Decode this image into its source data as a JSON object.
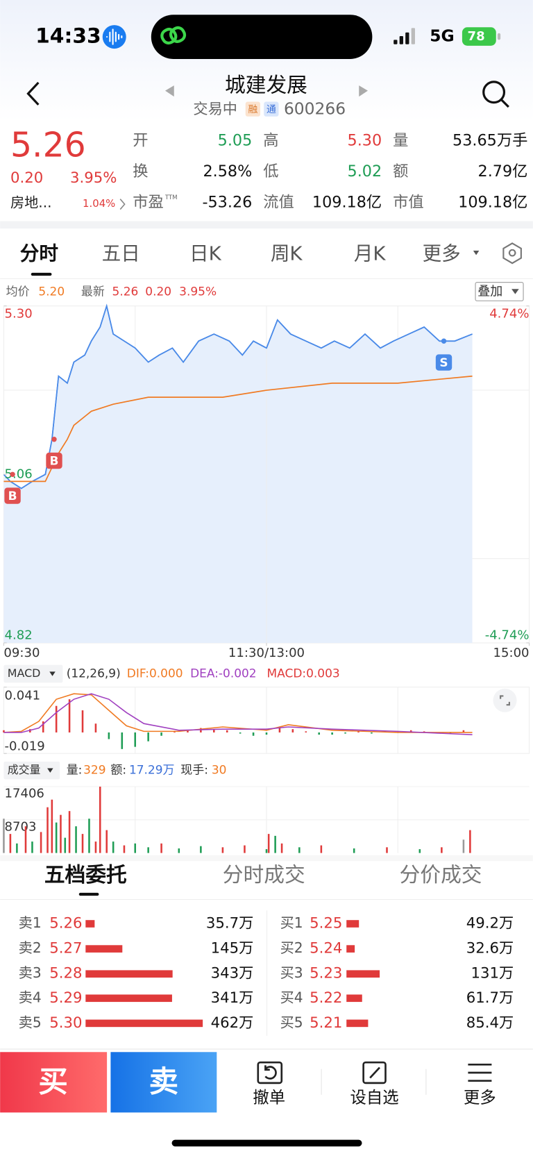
{
  "status_bar": {
    "time": "14:33",
    "network": "5G",
    "battery": "78"
  },
  "header": {
    "title": "城建发展",
    "status": "交易中",
    "badges": [
      "融",
      "通"
    ],
    "code": "600266"
  },
  "quote": {
    "price": "5.26",
    "change": "0.20",
    "change_pct": "3.95%",
    "sector": "房地...",
    "sector_pct": "1.04%",
    "stats": [
      {
        "label": "开",
        "value": "5.05",
        "color": "#1f9d55"
      },
      {
        "label": "高",
        "value": "5.30",
        "color": "#e03a3a"
      },
      {
        "label": "量",
        "value": "53.65万手",
        "color": "#111111"
      },
      {
        "label": "换",
        "value": "2.58%",
        "color": "#111111"
      },
      {
        "label": "低",
        "value": "5.02",
        "color": "#1f9d55"
      },
      {
        "label": "额",
        "value": "2.79亿",
        "color": "#111111"
      },
      {
        "label": "市盈",
        "suffix": "TTM",
        "value": "-53.26",
        "color": "#111111"
      },
      {
        "label": "流值",
        "value": "109.18亿",
        "color": "#111111"
      },
      {
        "label": "市值",
        "value": "109.18亿",
        "color": "#111111"
      }
    ]
  },
  "tabs": [
    "分时",
    "五日",
    "日K",
    "周K",
    "月K",
    "更多"
  ],
  "legend": {
    "latest_label": "最新",
    "latest": "5.26",
    "change": "0.20",
    "change_pct": "3.95%",
    "overlay": "叠加"
  },
  "chart_data": [
    {
      "type": "line",
      "fill_area": true,
      "xlim": [
        0,
        240
      ],
      "xticks": [
        {
          "value": 0,
          "label": "09:30"
        },
        {
          "value": 120,
          "label": "11:30/13:00"
        },
        {
          "value": 240,
          "label": "15:00"
        }
      ],
      "ylim": [
        4.82,
        5.3
      ],
      "yticks": [
        {
          "value": 5.3,
          "label": "5.30"
        },
        5.06,
        4.82
      ],
      "y2lim": [
        -4.74,
        4.74
      ],
      "y2ticks": [
        {
          "value": 4.74,
          "label": "4.74%"
        },
        {
          "value": -4.74,
          "label": "-4.74%"
        }
      ],
      "series": [
        {
          "name": "均价",
          "legend_value": "5.20",
          "color": "#f07a22",
          "x": [
            0,
            13,
            19,
            22,
            25,
            29,
            32,
            40,
            50,
            66,
            100,
            120,
            150,
            180,
            214
          ],
          "values": [
            5.05,
            5.05,
            5.05,
            5.07,
            5.09,
            5.11,
            5.13,
            5.15,
            5.16,
            5.17,
            5.17,
            5.18,
            5.19,
            5.19,
            5.2
          ]
        },
        {
          "color": "#4a8ae8",
          "area_color": "#e6effc",
          "x": [
            0,
            3,
            8,
            13,
            19,
            22,
            25,
            29,
            32,
            37,
            40,
            44,
            47,
            50,
            55,
            60,
            66,
            71,
            77,
            82,
            89,
            96,
            103,
            109,
            114,
            120,
            125,
            131,
            138,
            145,
            151,
            158,
            165,
            172,
            178,
            185,
            192,
            199,
            206,
            214
          ],
          "values": [
            5.06,
            5.05,
            5.04,
            5.05,
            5.06,
            5.11,
            5.2,
            5.19,
            5.22,
            5.23,
            5.25,
            5.27,
            5.3,
            5.26,
            5.25,
            5.24,
            5.22,
            5.23,
            5.24,
            5.22,
            5.25,
            5.26,
            5.25,
            5.23,
            5.25,
            5.24,
            5.28,
            5.26,
            5.25,
            5.24,
            5.25,
            5.24,
            5.26,
            5.24,
            5.25,
            5.26,
            5.27,
            5.25,
            5.25,
            5.26
          ]
        }
      ],
      "annotations": [
        {
          "x": 4,
          "y": 5.06,
          "label": "B",
          "color": "#e05050"
        },
        {
          "x": 23,
          "y": 5.11,
          "label": "B",
          "color": "#e05050"
        },
        {
          "x": 201,
          "y": 5.25,
          "label": "S",
          "color": "#4a8ae8"
        }
      ]
    },
    {
      "type": "macd",
      "menu": "MACD",
      "params": "(12,26,9)",
      "readouts": [
        {
          "text": "DIF:0.000",
          "color": "#f07a22"
        },
        {
          "text": "DEA:-0.002",
          "color": "#a040c0"
        },
        {
          "text": "MACD:0.003",
          "color": "#e03a3a"
        }
      ],
      "xlim": [
        0,
        240
      ],
      "ylim": [
        -0.019,
        0.041
      ],
      "yticks": [
        0.041,
        -0.019
      ],
      "lines_x": [
        0,
        8,
        16,
        24,
        32,
        40,
        48,
        56,
        64,
        80,
        100,
        120,
        130,
        150,
        180,
        214
      ],
      "dif": {
        "color": "#f07a22",
        "values": [
          0,
          0.001,
          0.01,
          0.03,
          0.035,
          0.034,
          0.02,
          0.006,
          0.001,
          0.001,
          0.005,
          0.002,
          0.007,
          0.002,
          0,
          0
        ]
      },
      "dea": {
        "color": "#a040c0",
        "values": [
          0,
          0,
          0.004,
          0.018,
          0.03,
          0.035,
          0.03,
          0.018,
          0.008,
          0.002,
          0.003,
          0.003,
          0.005,
          0.003,
          0.001,
          -0.002
        ]
      },
      "hist": {
        "up_color": "#e03a3a",
        "down_color": "#1f9d55",
        "x": [
          0,
          6,
          12,
          18,
          24,
          30,
          36,
          42,
          48,
          54,
          60,
          66,
          72,
          78,
          84,
          90,
          96,
          102,
          108,
          114,
          120,
          126,
          132,
          138,
          144,
          150,
          156,
          162,
          168,
          174,
          180,
          186,
          192,
          198,
          204,
          210
        ],
        "values": [
          0.002,
          0.001,
          0.003,
          0.01,
          0.024,
          0.03,
          0.02,
          0.008,
          -0.006,
          -0.015,
          -0.013,
          -0.008,
          -0.003,
          0.001,
          0.002,
          0.004,
          0.003,
          0.002,
          -0.001,
          -0.003,
          -0.002,
          0.004,
          0.003,
          0.001,
          -0.002,
          -0.002,
          -0.001,
          0.001,
          -0.001,
          0.001,
          0.001,
          0.002,
          0.001,
          -0.001,
          -0.001,
          0.002
        ]
      }
    },
    {
      "type": "bar",
      "menu": "成交量",
      "readouts": [
        {
          "label": "量:",
          "value": "329",
          "color": "#f07a22"
        },
        {
          "label": "额:",
          "value": "17.29万",
          "color": "#3a6fd8"
        },
        {
          "label": "现手:",
          "value": "30",
          "color": "#f07a22"
        }
      ],
      "xlim": [
        0,
        240
      ],
      "ylim": [
        0,
        17406
      ],
      "yticks": [
        17406,
        8703
      ],
      "x": [
        0,
        3,
        6,
        10,
        13,
        17,
        20,
        22,
        24,
        26,
        28,
        30,
        33,
        36,
        39,
        42,
        44,
        47,
        50,
        55,
        60,
        66,
        72,
        80,
        90,
        100,
        110,
        120,
        121,
        124,
        127,
        135,
        145,
        160,
        175,
        190,
        200,
        210,
        213
      ],
      "values": [
        9000,
        5000,
        2500,
        7000,
        3000,
        5500,
        12000,
        14000,
        8000,
        10000,
        4000,
        11000,
        7000,
        5000,
        9000,
        3000,
        17406,
        6000,
        3000,
        2000,
        2500,
        1500,
        2500,
        1200,
        1800,
        1500,
        2000,
        1000,
        5000,
        4500,
        2500,
        1500,
        2000,
        1200,
        1500,
        1000,
        1500,
        3500,
        6000
      ],
      "colors": [
        "#999999",
        "#e03a3a",
        "#1f9d55",
        "#e03a3a",
        "#1f9d55",
        "#e03a3a",
        "#e03a3a",
        "#e03a3a",
        "#1f9d55",
        "#e03a3a",
        "#1f9d55",
        "#e03a3a",
        "#1f9d55",
        "#e03a3a",
        "#1f9d55",
        "#e03a3a",
        "#e03a3a",
        "#e03a3a",
        "#1f9d55",
        "#e03a3a",
        "#1f9d55",
        "#1f9d55",
        "#e03a3a",
        "#1f9d55",
        "#1f9d55",
        "#e03a3a",
        "#e03a3a",
        "#1f9d55",
        "#e03a3a",
        "#1f9d55",
        "#e03a3a",
        "#1f9d55",
        "#e03a3a",
        "#1f9d55",
        "#e03a3a",
        "#1f9d55",
        "#e03a3a",
        "#999999",
        "#e03a3a"
      ]
    }
  ],
  "order_book": {
    "tabs": [
      "五档委托",
      "分时成交",
      "分价成交"
    ],
    "sell": [
      {
        "label": "卖1",
        "price": "5.26",
        "volume": 35.7,
        "volume_label": "35.7万"
      },
      {
        "label": "卖2",
        "price": "5.27",
        "volume": 145,
        "volume_label": "145万"
      },
      {
        "label": "卖3",
        "price": "5.28",
        "volume": 343,
        "volume_label": "343万"
      },
      {
        "label": "卖4",
        "price": "5.29",
        "volume": 341,
        "volume_label": "341万"
      },
      {
        "label": "卖5",
        "price": "5.30",
        "volume": 462,
        "volume_label": "462万"
      }
    ],
    "buy": [
      {
        "label": "买1",
        "price": "5.25",
        "volume": 49.2,
        "volume_label": "49.2万"
      },
      {
        "label": "买2",
        "price": "5.24",
        "volume": 32.6,
        "volume_label": "32.6万"
      },
      {
        "label": "买3",
        "price": "5.23",
        "volume": 131,
        "volume_label": "131万"
      },
      {
        "label": "买4",
        "price": "5.22",
        "volume": 61.7,
        "volume_label": "61.7万"
      },
      {
        "label": "买5",
        "price": "5.21",
        "volume": 85.4,
        "volume_label": "85.4万"
      }
    ]
  },
  "toolbar": {
    "buy": "买",
    "sell": "卖",
    "actions": [
      "撤单",
      "设自选",
      "更多"
    ]
  }
}
